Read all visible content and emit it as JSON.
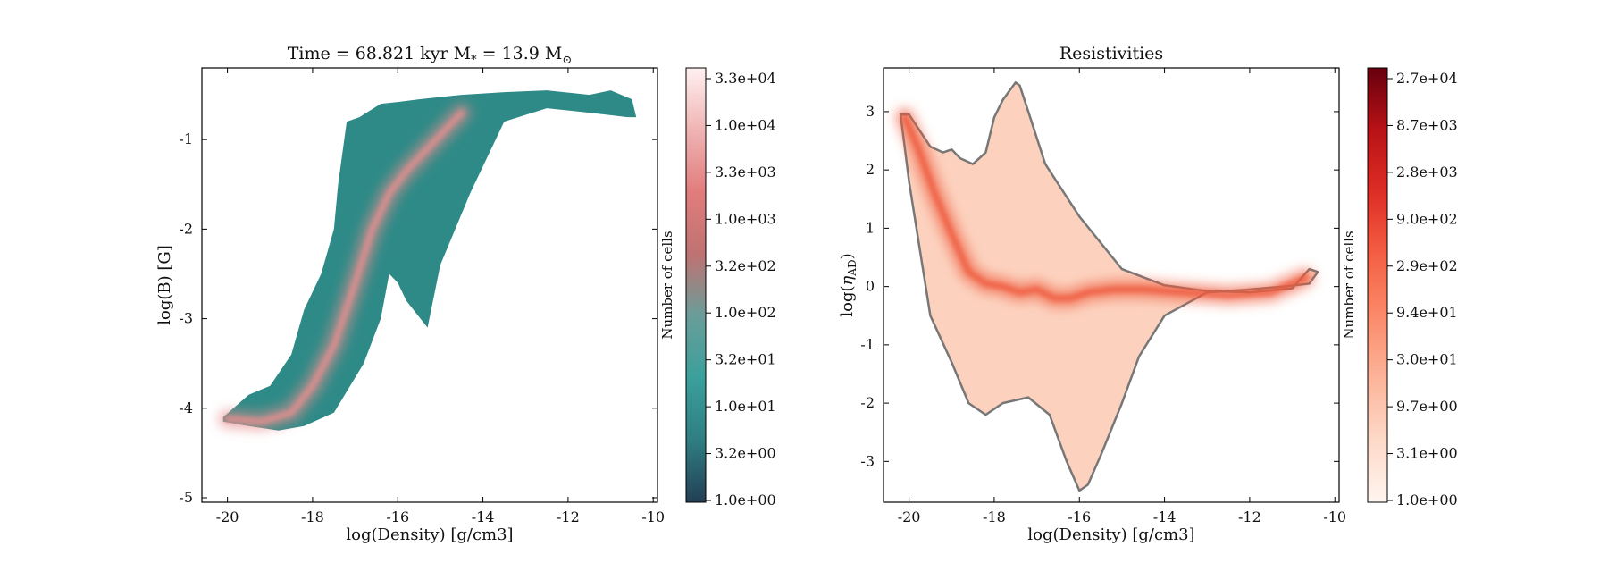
{
  "chart_data": [
    {
      "type": "heatmap",
      "title": "Time = 68.821 kyr    M$_*$ = 13.9 M$_\\odot$",
      "title_display": {
        "prefix": "Time = 68.821 kyr    M",
        "mid": " = 13.9 M",
        "sub_star": "*",
        "sub_sun": "⊙"
      },
      "xlabel": "log(Density) [g/cm3]",
      "ylabel": "log(B) [G]",
      "xlim": [
        -20.6,
        -9.9
      ],
      "ylim": [
        -5.05,
        -0.2
      ],
      "xticks": [
        -20,
        -18,
        -16,
        -14,
        -12,
        -10
      ],
      "yticks": [
        -5,
        -4,
        -3,
        -2,
        -1
      ],
      "colorbar_label": "Number of cells",
      "colorbar_ticks": [
        "1.0e+00",
        "3.2e+00",
        "1.0e+01",
        "3.2e+01",
        "1.0e+02",
        "3.2e+02",
        "1.0e+03",
        "3.3e+03",
        "1.0e+04",
        "3.3e+04"
      ],
      "colormap": [
        "#233f55",
        "#2f7e82",
        "#3aa09b",
        "#6a9d99",
        "#bf7272",
        "#e27c7c",
        "#f0b4b4",
        "#fff0f0"
      ],
      "base_color": "#2e8a87",
      "hot_color": "#e88e8e",
      "region": {
        "x": [
          -20.1,
          -19.5,
          -19.0,
          -18.5,
          -18.2,
          -17.8,
          -17.5,
          -17.4,
          -17.2,
          -16.9,
          -16.4,
          -16.0,
          -15.5,
          -14.5,
          -13.5,
          -12.5,
          -11.5,
          -11.0,
          -10.5,
          -10.4,
          -10.6,
          -11.5,
          -12.5,
          -13.5,
          -14.3,
          -15.0,
          -15.3,
          -15.8,
          -16.0,
          -16.2,
          -16.4,
          -16.8,
          -17.5,
          -18.2,
          -18.8,
          -19.5,
          -20.1
        ],
        "y": [
          -4.1,
          -3.85,
          -3.75,
          -3.4,
          -2.9,
          -2.5,
          -2.0,
          -1.5,
          -0.8,
          -0.75,
          -0.6,
          -0.58,
          -0.55,
          -0.5,
          -0.47,
          -0.45,
          -0.5,
          -0.45,
          -0.55,
          -0.75,
          -0.75,
          -0.7,
          -0.65,
          -0.8,
          -1.6,
          -2.4,
          -3.1,
          -2.8,
          -2.6,
          -2.5,
          -3.0,
          -3.5,
          -4.05,
          -4.2,
          -4.25,
          -4.2,
          -4.15
        ]
      },
      "ridge": {
        "x": [
          -20.0,
          -19.2,
          -18.5,
          -18.0,
          -17.5,
          -17.0,
          -16.6,
          -16.2,
          -15.8,
          -15.2,
          -14.5
        ],
        "y": [
          -4.12,
          -4.15,
          -4.05,
          -3.75,
          -3.3,
          -2.6,
          -2.0,
          -1.6,
          -1.35,
          -1.05,
          -0.7
        ]
      }
    },
    {
      "type": "heatmap",
      "title": "Resistivities",
      "xlabel": "log(Density) [g/cm3]",
      "ylabel": "log(η_AD)",
      "ylabel_display": {
        "base": "log(",
        "symbol": "η",
        "sub": "AD",
        "close": ")"
      },
      "xlim": [
        -20.6,
        -9.9
      ],
      "ylim": [
        -3.7,
        3.75
      ],
      "xticks": [
        -20,
        -18,
        -16,
        -14,
        -12,
        -10
      ],
      "yticks": [
        -3,
        -2,
        -1,
        0,
        1,
        2,
        3
      ],
      "colorbar_label": "Number of cells",
      "colorbar_ticks": [
        "1.0e+00",
        "3.1e+00",
        "9.7e+00",
        "3.0e+01",
        "9.4e+01",
        "2.9e+02",
        "9.0e+02",
        "2.8e+03",
        "8.7e+03",
        "2.7e+04"
      ],
      "colormap": [
        "#fff5f0",
        "#fdd9c8",
        "#fcb49a",
        "#fb8a6a",
        "#f45f45",
        "#de2d26",
        "#b81217",
        "#67000d"
      ],
      "base_color": "#fcd2bf",
      "hot_color": "#ef5a3c",
      "contour_color": "#777777",
      "region": {
        "x": [
          -20.2,
          -20.0,
          -19.5,
          -19.2,
          -19.0,
          -18.8,
          -18.5,
          -18.2,
          -18.0,
          -17.8,
          -17.5,
          -17.4,
          -17.2,
          -16.8,
          -16.0,
          -15.0,
          -14.0,
          -13.0,
          -12.0,
          -11.0,
          -10.6,
          -10.4,
          -10.6,
          -11.2,
          -12.0,
          -13.0,
          -14.0,
          -14.6,
          -15.0,
          -15.5,
          -15.8,
          -16.0,
          -16.3,
          -16.7,
          -17.2,
          -17.8,
          -18.2,
          -18.6,
          -19.0,
          -19.5,
          -20.0,
          -20.2
        ],
        "y": [
          2.95,
          2.95,
          2.4,
          2.3,
          2.35,
          2.2,
          2.1,
          2.3,
          2.9,
          3.2,
          3.5,
          3.45,
          3.0,
          2.1,
          1.2,
          0.3,
          0.02,
          -0.08,
          -0.1,
          -0.03,
          0.3,
          0.25,
          0.05,
          0.0,
          -0.05,
          -0.1,
          -0.5,
          -1.2,
          -2.0,
          -2.9,
          -3.4,
          -3.5,
          -3.0,
          -2.2,
          -1.9,
          -2.0,
          -2.2,
          -2.0,
          -1.3,
          -0.5,
          1.8,
          2.95
        ]
      },
      "ridge": {
        "x": [
          -20.1,
          -19.8,
          -19.4,
          -19.0,
          -18.6,
          -18.2,
          -17.8,
          -17.4,
          -17.0,
          -16.6,
          -16.2,
          -15.8,
          -15.2,
          -14.5,
          -13.5,
          -12.5,
          -11.5,
          -10.7
        ],
        "y": [
          2.9,
          2.4,
          1.6,
          0.9,
          0.25,
          0.05,
          0.0,
          -0.1,
          -0.05,
          -0.2,
          -0.2,
          -0.1,
          -0.05,
          -0.05,
          -0.1,
          -0.15,
          -0.1,
          0.15
        ]
      }
    }
  ]
}
